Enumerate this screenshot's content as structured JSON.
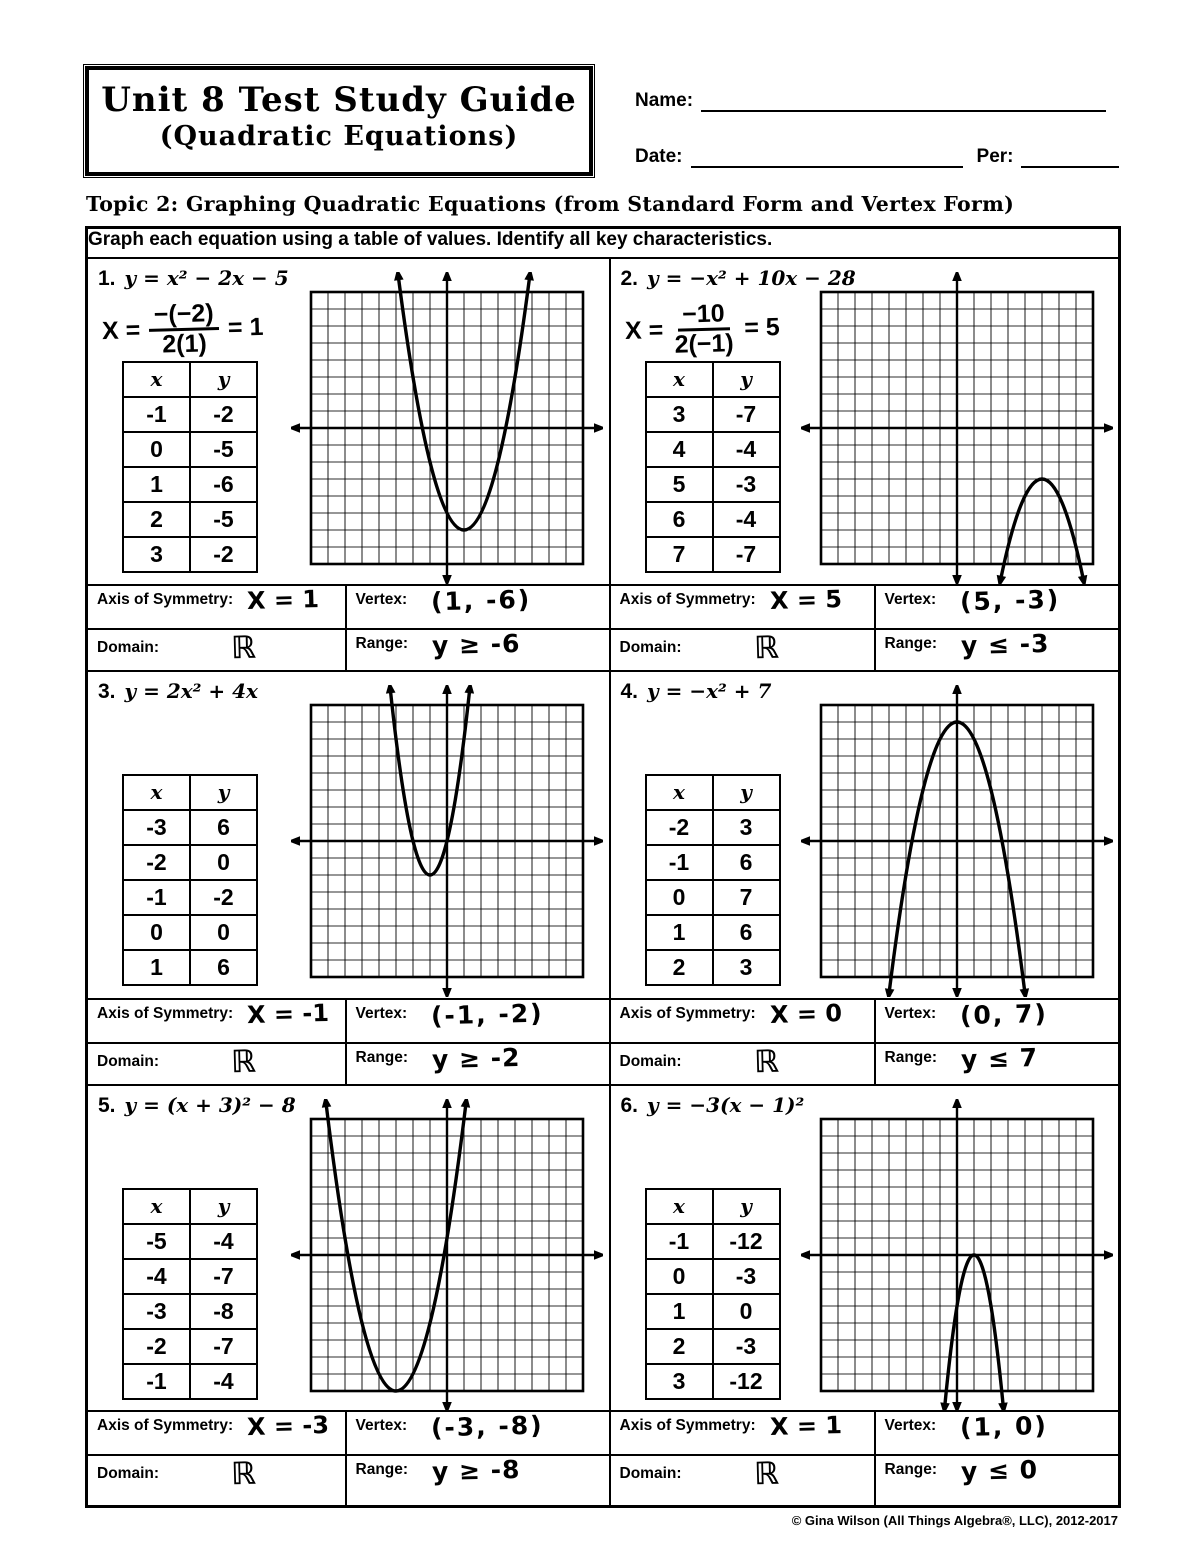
{
  "header": {
    "title_line1": "Unit 8 Test Study Guide",
    "title_line2": "(Quadratic Equations)",
    "name_label": "Name:",
    "date_label": "Date:",
    "per_label": "Per:"
  },
  "topic": "Topic 2: Graphing Quadratic Equations (from Standard Form and Vertex Form)",
  "instructions": "Graph each equation using a table of values.  Identify all key characteristics.",
  "labels": {
    "axis_of_symmetry": "Axis of Symmetry:",
    "vertex": "Vertex:",
    "domain": "Domain:",
    "range": "Range:",
    "table_x": "x",
    "table_y": "y"
  },
  "problems": [
    {
      "number": "1.",
      "equation": "y = x² − 2x − 5",
      "work": {
        "prefix": "X =",
        "numerator": "−(−2)",
        "denominator": "2(1)",
        "result": "= 1"
      },
      "table": {
        "x": [
          "-1",
          "0",
          "1",
          "2",
          "3"
        ],
        "y": [
          "-2",
          "-5",
          "-6",
          "-5",
          "-2"
        ]
      },
      "graph": {
        "a": 1,
        "h": 1,
        "k": -6
      },
      "axis_of_symmetry": "X = 1",
      "vertex": "(1, -6)",
      "domain": "ℝ",
      "range": "y ≥ -6"
    },
    {
      "number": "2.",
      "equation": "y = −x² + 10x − 28",
      "work": {
        "prefix": "X =",
        "numerator": "−10",
        "denominator": "2(−1)",
        "result": "= 5"
      },
      "table": {
        "x": [
          "3",
          "4",
          "5",
          "6",
          "7"
        ],
        "y": [
          "-7",
          "-4",
          "-3",
          "-4",
          "-7"
        ]
      },
      "graph": {
        "a": -1,
        "h": 5,
        "k": -3
      },
      "axis_of_symmetry": "X = 5",
      "vertex": "(5, -3)",
      "domain": "ℝ",
      "range": "y ≤ -3"
    },
    {
      "number": "3.",
      "equation": "y = 2x² + 4x",
      "table": {
        "x": [
          "-3",
          "-2",
          "-1",
          "0",
          "1"
        ],
        "y": [
          "6",
          "0",
          "-2",
          "0",
          "6"
        ]
      },
      "graph": {
        "a": 2,
        "h": -1,
        "k": -2
      },
      "axis_of_symmetry": "X = -1",
      "vertex": "(-1, -2)",
      "domain": "ℝ",
      "range": "y ≥ -2"
    },
    {
      "number": "4.",
      "equation": "y = −x² + 7",
      "table": {
        "x": [
          "-2",
          "-1",
          "0",
          "1",
          "2"
        ],
        "y": [
          "3",
          "6",
          "7",
          "6",
          "3"
        ]
      },
      "graph": {
        "a": -1,
        "h": 0,
        "k": 7
      },
      "axis_of_symmetry": "X = 0",
      "vertex": "(0, 7)",
      "domain": "ℝ",
      "range": "y ≤ 7"
    },
    {
      "number": "5.",
      "equation": "y = (x + 3)² − 8",
      "table": {
        "x": [
          "-5",
          "-4",
          "-3",
          "-2",
          "-1"
        ],
        "y": [
          "-4",
          "-7",
          "-8",
          "-7",
          "-4"
        ]
      },
      "graph": {
        "a": 1,
        "h": -3,
        "k": -8
      },
      "axis_of_symmetry": "X = -3",
      "vertex": "(-3, -8)",
      "domain": "ℝ",
      "range": "y ≥ -8"
    },
    {
      "number": "6.",
      "equation": "y = −3(x − 1)²",
      "table": {
        "x": [
          "-1",
          "0",
          "1",
          "2",
          "3"
        ],
        "y": [
          "-12",
          "-3",
          "0",
          "-3",
          "-12"
        ]
      },
      "graph": {
        "a": -3,
        "h": 1,
        "k": 0
      },
      "axis_of_symmetry": "X = 1",
      "vertex": "(1, 0)",
      "domain": "ℝ",
      "range": "y ≤ 0"
    }
  ],
  "footer": "© Gina Wilson (All Things Algebra®, LLC), 2012-2017"
}
